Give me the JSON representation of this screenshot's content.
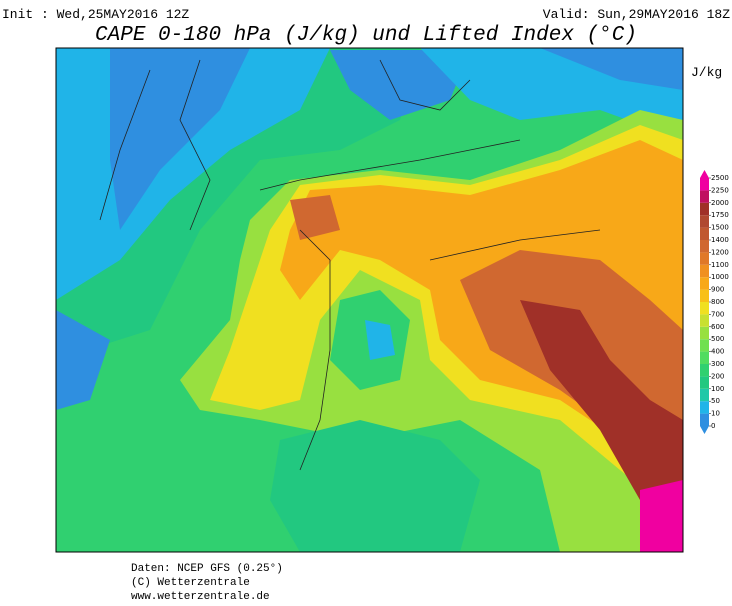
{
  "header": {
    "init": "Init : Wed,25MAY2016 12Z",
    "valid": "Valid: Sun,29MAY2016 18Z",
    "title": "CAPE 0-180 hPa (J/kg) und Lifted Index (°C)"
  },
  "legend": {
    "unit": "J/kg",
    "levels": [
      0,
      10,
      50,
      100,
      200,
      300,
      400,
      500,
      600,
      700,
      800,
      900,
      1000,
      1100,
      1200,
      1400,
      1500,
      1750,
      2000,
      2250,
      2500
    ],
    "colors": [
      "#2f8fe0",
      "#20b4e8",
      "#1fc8a8",
      "#22c880",
      "#30d070",
      "#50dc60",
      "#70e050",
      "#98e040",
      "#c8e030",
      "#f0e020",
      "#f8c018",
      "#f8a818",
      "#f09020",
      "#e07828",
      "#d06830",
      "#c05830",
      "#b04830",
      "#a03028",
      "#c01060",
      "#f000a0"
    ]
  },
  "footer": {
    "source": "Daten: NCEP GFS (0.25°)",
    "copyright": "(C) Wetterzentrale",
    "url": "www.wetterzentrale.de"
  }
}
